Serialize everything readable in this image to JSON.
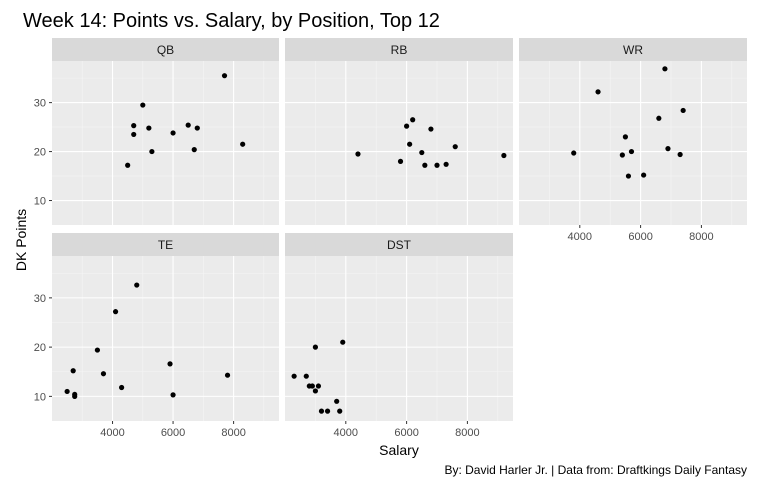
{
  "chart_data": {
    "type": "scatter",
    "title": "Week 14: Points vs. Salary, by Position, Top 12",
    "xlabel": "Salary",
    "ylabel": "DK Points",
    "caption": "By: David Harler Jr. | Data from: Draftkings Daily Fantasy",
    "xlim": [
      2000,
      9500
    ],
    "ylim": [
      5,
      38.5
    ],
    "x_ticks": [
      4000,
      6000,
      8000
    ],
    "x_tick_labels": [
      "4000",
      "6000",
      "8000"
    ],
    "y_ticks": [
      10,
      20,
      30
    ],
    "y_tick_labels": [
      "10",
      "20",
      "30"
    ],
    "grid": true,
    "facets": [
      {
        "name": "QB",
        "points": [
          {
            "x": 4500,
            "y": 17.2
          },
          {
            "x": 4700,
            "y": 23.5
          },
          {
            "x": 4700,
            "y": 25.3
          },
          {
            "x": 5000,
            "y": 29.5
          },
          {
            "x": 5200,
            "y": 24.8
          },
          {
            "x": 5300,
            "y": 20.0
          },
          {
            "x": 6000,
            "y": 23.8
          },
          {
            "x": 6500,
            "y": 25.4
          },
          {
            "x": 6700,
            "y": 20.4
          },
          {
            "x": 6800,
            "y": 24.8
          },
          {
            "x": 7700,
            "y": 35.5
          },
          {
            "x": 8300,
            "y": 21.5
          }
        ]
      },
      {
        "name": "RB",
        "points": [
          {
            "x": 4400,
            "y": 19.5
          },
          {
            "x": 5800,
            "y": 18.0
          },
          {
            "x": 6000,
            "y": 25.2
          },
          {
            "x": 6100,
            "y": 21.5
          },
          {
            "x": 6200,
            "y": 26.5
          },
          {
            "x": 6500,
            "y": 19.8
          },
          {
            "x": 6600,
            "y": 17.2
          },
          {
            "x": 6800,
            "y": 24.6
          },
          {
            "x": 7000,
            "y": 17.2
          },
          {
            "x": 7300,
            "y": 17.4
          },
          {
            "x": 7600,
            "y": 21.0
          },
          {
            "x": 9200,
            "y": 19.2
          }
        ]
      },
      {
        "name": "WR",
        "points": [
          {
            "x": 3800,
            "y": 19.7
          },
          {
            "x": 4600,
            "y": 32.2
          },
          {
            "x": 5400,
            "y": 19.3
          },
          {
            "x": 5500,
            "y": 23.0
          },
          {
            "x": 5600,
            "y": 15.0
          },
          {
            "x": 5700,
            "y": 20.0
          },
          {
            "x": 6100,
            "y": 15.2
          },
          {
            "x": 6600,
            "y": 26.8
          },
          {
            "x": 6800,
            "y": 36.9
          },
          {
            "x": 6900,
            "y": 20.6
          },
          {
            "x": 7300,
            "y": 19.4
          },
          {
            "x": 7400,
            "y": 28.4
          }
        ]
      },
      {
        "name": "TE",
        "points": [
          {
            "x": 2500,
            "y": 11.0
          },
          {
            "x": 2700,
            "y": 15.2
          },
          {
            "x": 2750,
            "y": 10.4
          },
          {
            "x": 2750,
            "y": 10.0
          },
          {
            "x": 3500,
            "y": 19.4
          },
          {
            "x": 3700,
            "y": 14.6
          },
          {
            "x": 4100,
            "y": 27.2
          },
          {
            "x": 4300,
            "y": 11.8
          },
          {
            "x": 4800,
            "y": 32.6
          },
          {
            "x": 5900,
            "y": 16.6
          },
          {
            "x": 6000,
            "y": 10.3
          },
          {
            "x": 7800,
            "y": 14.3
          }
        ]
      },
      {
        "name": "DST",
        "points": [
          {
            "x": 2300,
            "y": 14.1
          },
          {
            "x": 2700,
            "y": 14.1
          },
          {
            "x": 2800,
            "y": 12.1
          },
          {
            "x": 2900,
            "y": 12.1
          },
          {
            "x": 3000,
            "y": 11.1
          },
          {
            "x": 3000,
            "y": 20.0
          },
          {
            "x": 3100,
            "y": 12.1
          },
          {
            "x": 3200,
            "y": 7.0
          },
          {
            "x": 3400,
            "y": 7.0
          },
          {
            "x": 3700,
            "y": 9.0
          },
          {
            "x": 3800,
            "y": 7.0
          },
          {
            "x": 3900,
            "y": 21.0
          }
        ]
      }
    ]
  }
}
